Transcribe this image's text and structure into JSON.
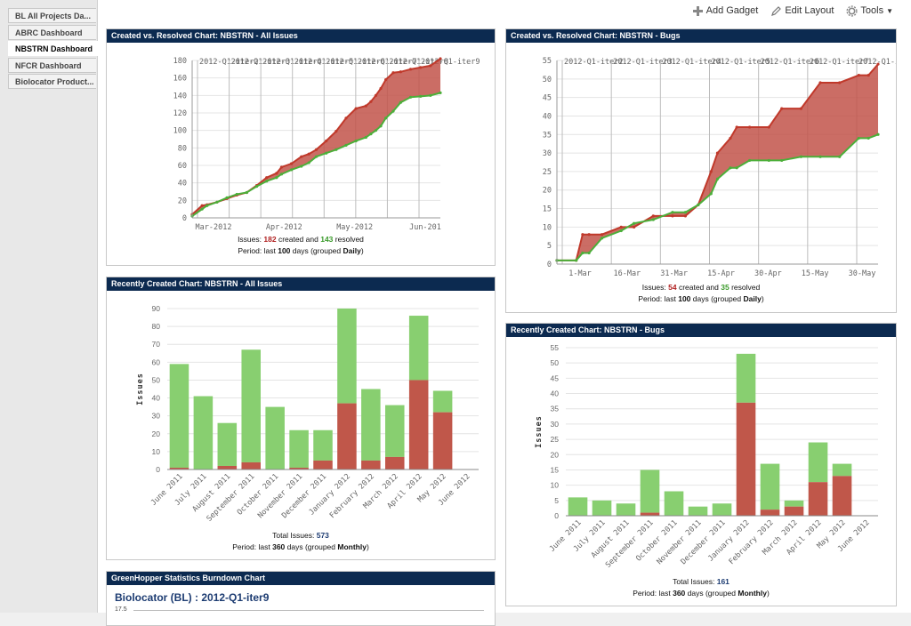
{
  "sidebar": {
    "items": [
      {
        "label": "BL All Projects Da..."
      },
      {
        "label": "ABRC Dashboard"
      },
      {
        "label": "NBSTRN Dashboard"
      },
      {
        "label": "NFCR Dashboard"
      },
      {
        "label": "Biolocator Product..."
      }
    ]
  },
  "toolbar": {
    "add_gadget": "Add Gadget",
    "edit_layout": "Edit Layout",
    "tools": "Tools"
  },
  "gadgets": {
    "cvr_all": {
      "title": "Created vs. Resolved Chart: NBSTRN - All Issues",
      "summary_prefix": "Issues:",
      "created": "182",
      "created_text": "created and",
      "resolved": "143",
      "resolved_text": "resolved",
      "period_prefix": "Period: last",
      "days": "100",
      "period_mid": "days (grouped",
      "group": "Daily",
      "period_end": ")"
    },
    "cvr_bugs": {
      "title": "Created vs. Resolved Chart: NBSTRN - Bugs",
      "summary_prefix": "Issues:",
      "created": "54",
      "created_text": "created and",
      "resolved": "35",
      "resolved_text": "resolved",
      "period_prefix": "Period: last",
      "days": "100",
      "period_mid": "days (grouped",
      "group": "Daily",
      "period_end": ")"
    },
    "rc_all": {
      "title": "Recently Created Chart: NBSTRN - All Issues",
      "total_prefix": "Total Issues:",
      "total": "573",
      "period_prefix": "Period: last",
      "days": "360",
      "period_mid": "days (grouped",
      "group": "Monthly",
      "period_end": ")"
    },
    "rc_bugs": {
      "title": "Recently Created Chart: NBSTRN - Bugs",
      "total_prefix": "Total Issues:",
      "total": "161",
      "period_prefix": "Period: last",
      "days": "360",
      "period_mid": "days (grouped",
      "group": "Monthly",
      "period_end": ")"
    },
    "burndown": {
      "title": "GreenHopper Statistics Burndown Chart",
      "subtitle": "Biolocator (BL) : 2012-Q1-iter9",
      "first_tick": "17.5"
    }
  },
  "colors": {
    "header": "#0c2a50",
    "created": "#c0392b",
    "resolved": "#4caf3a",
    "bar_green": "#88cf70",
    "bar_red": "#c0574a",
    "fill": "#c2534a"
  },
  "chart_data": [
    {
      "type": "area",
      "title": "Created vs. Resolved Chart: NBSTRN - All Issues",
      "x_tick_labels": [
        "Mar-2012",
        "Apr-2012",
        "May-2012",
        "Jun-201"
      ],
      "version_labels": [
        "2012-Q1-iter2",
        "2012-Q1-iter3",
        "2012-Q1-iter4",
        "2012-Q1-iter5",
        "2012-Q1-iter6",
        "2012-Q1-iter7",
        "2012-Q1-iter8",
        "2012-Q1-iter9"
      ],
      "ylim": [
        0,
        180
      ],
      "yticks": [
        0,
        20,
        40,
        60,
        80,
        100,
        120,
        140,
        160,
        180
      ],
      "x": [
        0,
        4,
        6,
        10,
        14,
        18,
        22,
        26,
        30,
        34,
        36,
        40,
        44,
        47,
        50,
        54,
        58,
        62,
        66,
        70,
        72,
        74,
        76,
        78,
        81,
        84,
        88,
        92,
        96,
        100
      ],
      "series": [
        {
          "name": "created",
          "values": [
            4,
            14,
            15,
            18,
            22,
            26,
            29,
            37,
            46,
            51,
            58,
            62,
            70,
            73,
            78,
            88,
            99,
            114,
            125,
            128,
            133,
            140,
            148,
            158,
            166,
            167,
            170,
            172,
            174,
            182
          ]
        },
        {
          "name": "resolved",
          "values": [
            2,
            10,
            14,
            18,
            23,
            27,
            29,
            36,
            42,
            46,
            50,
            55,
            59,
            63,
            70,
            74,
            78,
            83,
            88,
            92,
            96,
            100,
            105,
            114,
            122,
            132,
            138,
            139,
            140,
            143
          ]
        }
      ],
      "grid": true
    },
    {
      "type": "area",
      "title": "Created vs. Resolved Chart: NBSTRN - Bugs",
      "x_tick_labels": [
        "1-Mar",
        "16-Mar",
        "31-Mar",
        "15-Apr",
        "30-Apr",
        "15-May",
        "30-May"
      ],
      "version_labels": [
        "2012-Q1-iter2",
        "2012-Q1-iter3",
        "2012-Q1-iter4",
        "2012-Q1-iter5",
        "2012-Q1-iter6",
        "2012-Q1-iter7",
        "2012-Q1-iter8"
      ],
      "ylim": [
        0,
        55
      ],
      "yticks": [
        0,
        5,
        10,
        15,
        20,
        25,
        30,
        35,
        40,
        45,
        50,
        55
      ],
      "x": [
        0,
        6,
        8,
        10,
        14,
        20,
        24,
        30,
        36,
        40,
        44,
        48,
        50,
        54,
        56,
        60,
        66,
        70,
        76,
        82,
        88,
        94,
        97,
        100
      ],
      "series": [
        {
          "name": "created",
          "values": [
            1,
            1,
            8,
            8,
            8,
            10,
            10,
            13,
            13,
            13,
            16,
            25,
            30,
            34,
            37,
            37,
            37,
            42,
            42,
            49,
            49,
            51,
            51,
            54
          ]
        },
        {
          "name": "resolved",
          "values": [
            1,
            1,
            3,
            3,
            7,
            9,
            11,
            12,
            14,
            14,
            16,
            19,
            23,
            26,
            26,
            28,
            28,
            28,
            29,
            29,
            29,
            34,
            34,
            35
          ]
        }
      ],
      "grid": true
    },
    {
      "type": "bar",
      "title": "Recently Created Chart: NBSTRN - All Issues",
      "ylabel": "Issues",
      "ylim": [
        0,
        90
      ],
      "yticks": [
        0,
        10,
        20,
        30,
        40,
        50,
        60,
        70,
        80,
        90
      ],
      "categories": [
        "June 2011",
        "July 2011",
        "August 2011",
        "September 2011",
        "October 2011",
        "November 2011",
        "December 2011",
        "January 2012",
        "February 2012",
        "March 2012",
        "April 2012",
        "May 2012",
        "June 2012"
      ],
      "series": [
        {
          "name": "unresolved",
          "values": [
            1,
            0,
            2,
            4,
            0,
            1,
            5,
            37,
            5,
            7,
            50,
            32,
            0
          ]
        },
        {
          "name": "resolved",
          "values": [
            58,
            41,
            24,
            63,
            35,
            21,
            17,
            53,
            40,
            29,
            36,
            12,
            0
          ]
        }
      ]
    },
    {
      "type": "bar",
      "title": "Recently Created Chart: NBSTRN - Bugs",
      "ylabel": "Issues",
      "ylim": [
        0,
        55
      ],
      "yticks": [
        0,
        5,
        10,
        15,
        20,
        25,
        30,
        35,
        40,
        45,
        50,
        55
      ],
      "categories": [
        "June 2011",
        "July 2011",
        "August 2011",
        "September 2011",
        "October 2011",
        "November 2011",
        "December 2011",
        "January 2012",
        "February 2012",
        "March 2012",
        "April 2012",
        "May 2012",
        "June 2012"
      ],
      "series": [
        {
          "name": "unresolved",
          "values": [
            0,
            0,
            0,
            1,
            0,
            0,
            0,
            37,
            2,
            3,
            11,
            13,
            0
          ]
        },
        {
          "name": "resolved",
          "values": [
            6,
            5,
            4,
            14,
            8,
            3,
            4,
            16,
            15,
            2,
            13,
            4,
            0
          ]
        }
      ]
    }
  ]
}
